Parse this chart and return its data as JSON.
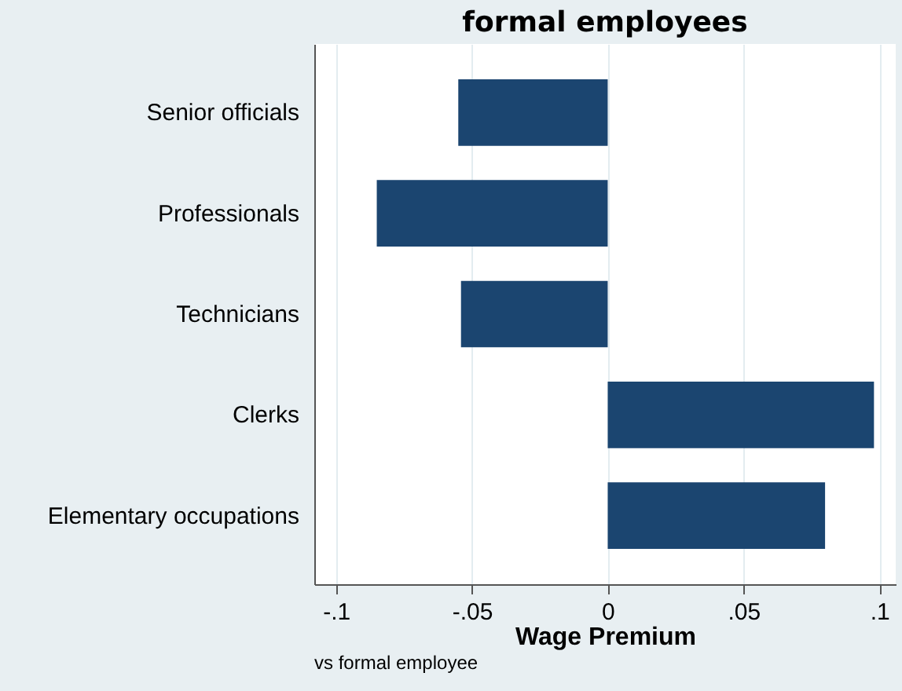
{
  "chart_data": {
    "type": "bar",
    "orientation": "horizontal",
    "title": "formal employees",
    "xlabel": "Wage Premium",
    "categories": [
      "Senior officials",
      "Professionals",
      "Technicians",
      "Clerks",
      "Elementary occupations"
    ],
    "values": [
      -0.055,
      -0.085,
      -0.054,
      0.098,
      0.08
    ],
    "color": "#1b4570",
    "xlim": [
      -0.108,
      0.106
    ],
    "xticks": [
      {
        "value": -0.1,
        "label": "-.1"
      },
      {
        "value": -0.05,
        "label": "-.05"
      },
      0,
      {
        "value": 0.05,
        "label": ".05"
      },
      {
        "value": 0.1,
        "label": ".1"
      }
    ],
    "grid": "x",
    "annotations": [
      "vs formal employee"
    ]
  }
}
